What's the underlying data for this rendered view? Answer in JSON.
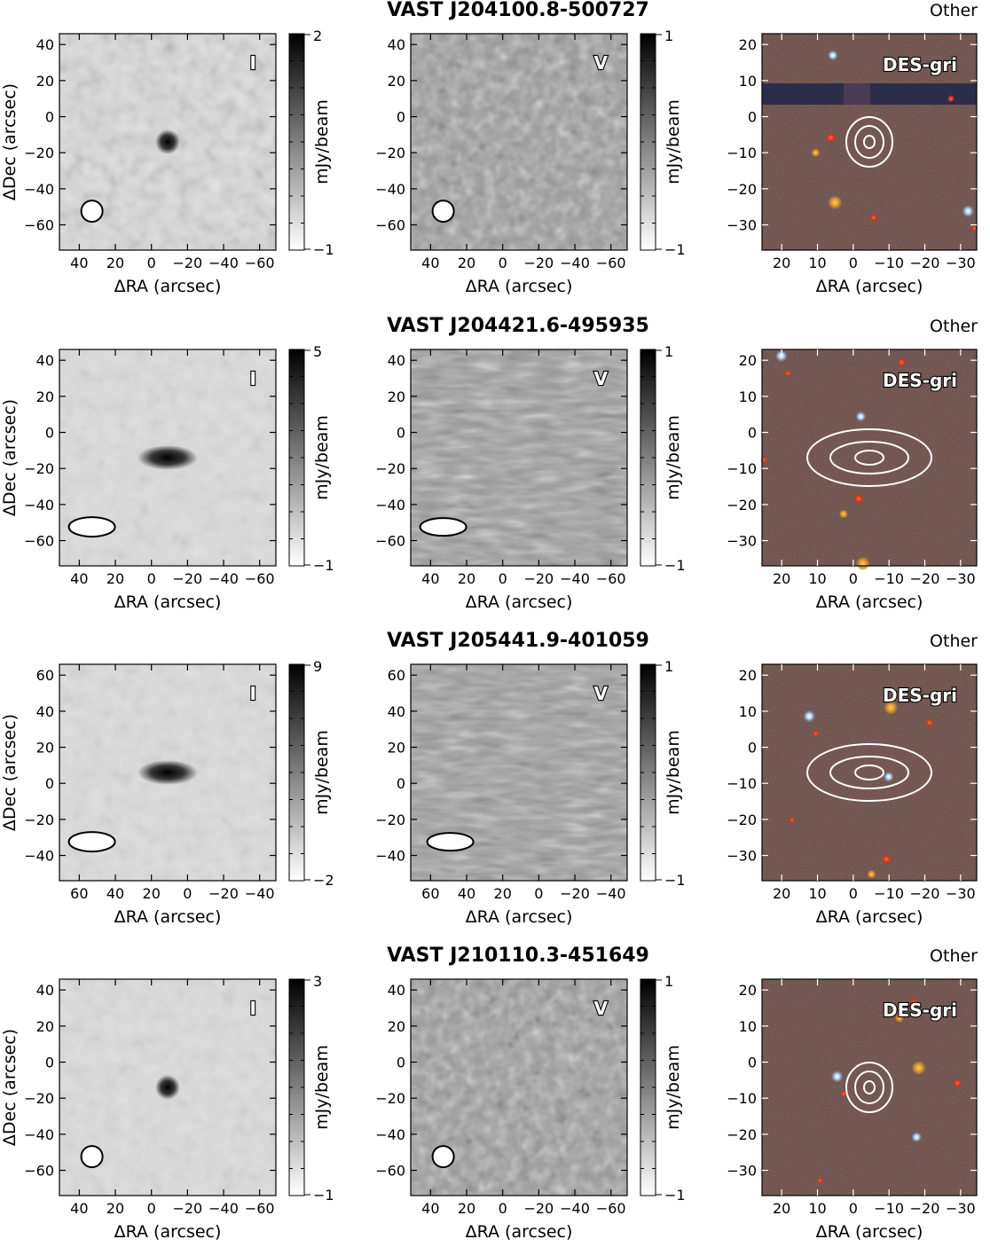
{
  "figure": {
    "rows": [
      {
        "title": "VAST J204100.8-500727",
        "classification": "Other",
        "stokes_i": {
          "label": "I",
          "cbar_min": "−1",
          "cbar_max": "2",
          "xticks": [
            "40",
            "20",
            "0",
            "−20",
            "−40",
            "−60"
          ],
          "yticks": [
            "40",
            "20",
            "0",
            "−20",
            "−40",
            "−60"
          ],
          "source_shape": "compact"
        },
        "stokes_v": {
          "label": "V",
          "cbar_min": "−1",
          "cbar_max": "1",
          "xticks": [
            "40",
            "20",
            "0",
            "−20",
            "−40",
            "−60"
          ],
          "yticks": [
            "40",
            "20",
            "0",
            "−20",
            "−40",
            "−60"
          ]
        },
        "optical": {
          "label": "DES-gri",
          "xticks": [
            "20",
            "10",
            "0",
            "−10",
            "−20",
            "−30"
          ],
          "yticks": [
            "20",
            "10",
            "0",
            "−10",
            "−20",
            "−30"
          ]
        }
      },
      {
        "title": "VAST J204421.6-495935",
        "classification": "Other",
        "stokes_i": {
          "label": "I",
          "cbar_min": "−1",
          "cbar_max": "5",
          "xticks": [
            "40",
            "20",
            "0",
            "−20",
            "−40",
            "−60"
          ],
          "yticks": [
            "40",
            "20",
            "0",
            "−20",
            "−40",
            "−60"
          ],
          "source_shape": "elongated"
        },
        "stokes_v": {
          "label": "V",
          "cbar_min": "−1",
          "cbar_max": "1",
          "xticks": [
            "40",
            "20",
            "0",
            "−20",
            "−40",
            "−60"
          ],
          "yticks": [
            "40",
            "20",
            "0",
            "−20",
            "−40",
            "−60"
          ]
        },
        "optical": {
          "label": "DES-gri",
          "xticks": [
            "20",
            "10",
            "0",
            "−10",
            "−20",
            "−30"
          ],
          "yticks": [
            "20",
            "10",
            "0",
            "−10",
            "−20",
            "−30"
          ]
        }
      },
      {
        "title": "VAST J205441.9-401059",
        "classification": "Other",
        "stokes_i": {
          "label": "I",
          "cbar_min": "−2",
          "cbar_max": "9",
          "xticks": [
            "60",
            "40",
            "20",
            "0",
            "−20",
            "−40"
          ],
          "yticks": [
            "60",
            "40",
            "20",
            "0",
            "−20",
            "−40"
          ],
          "source_shape": "elongated"
        },
        "stokes_v": {
          "label": "V",
          "cbar_min": "−1",
          "cbar_max": "1",
          "xticks": [
            "60",
            "40",
            "20",
            "0",
            "−20",
            "−40"
          ],
          "yticks": [
            "60",
            "40",
            "20",
            "0",
            "−20",
            "−40"
          ]
        },
        "optical": {
          "label": "DES-gri",
          "xticks": [
            "20",
            "10",
            "0",
            "−10",
            "−20",
            "−30"
          ],
          "yticks": [
            "20",
            "10",
            "0",
            "−10",
            "−20",
            "−30"
          ]
        }
      },
      {
        "title": "VAST J210110.3-451649",
        "classification": "Other",
        "stokes_i": {
          "label": "I",
          "cbar_min": "−1",
          "cbar_max": "3",
          "xticks": [
            "40",
            "20",
            "0",
            "−20",
            "−40",
            "−60"
          ],
          "yticks": [
            "40",
            "20",
            "0",
            "−20",
            "−40",
            "−60"
          ],
          "source_shape": "compact"
        },
        "stokes_v": {
          "label": "V",
          "cbar_min": "−1",
          "cbar_max": "1",
          "xticks": [
            "40",
            "20",
            "0",
            "−20",
            "−40",
            "−60"
          ],
          "yticks": [
            "40",
            "20",
            "0",
            "−20",
            "−40",
            "−60"
          ]
        },
        "optical": {
          "label": "DES-gri",
          "xticks": [
            "20",
            "10",
            "0",
            "−10",
            "−20",
            "−30"
          ],
          "yticks": [
            "20",
            "10",
            "0",
            "−10",
            "−20",
            "−30"
          ]
        }
      }
    ],
    "axis_labels": {
      "x": "ΔRA (arcsec)",
      "y": "ΔDec (arcsec)",
      "colorbar": "mJy/beam"
    },
    "colors": {
      "background": "#ffffff",
      "optical_bg": "#2a1a17",
      "contour": "#ffffff",
      "axis": "#000000"
    }
  }
}
